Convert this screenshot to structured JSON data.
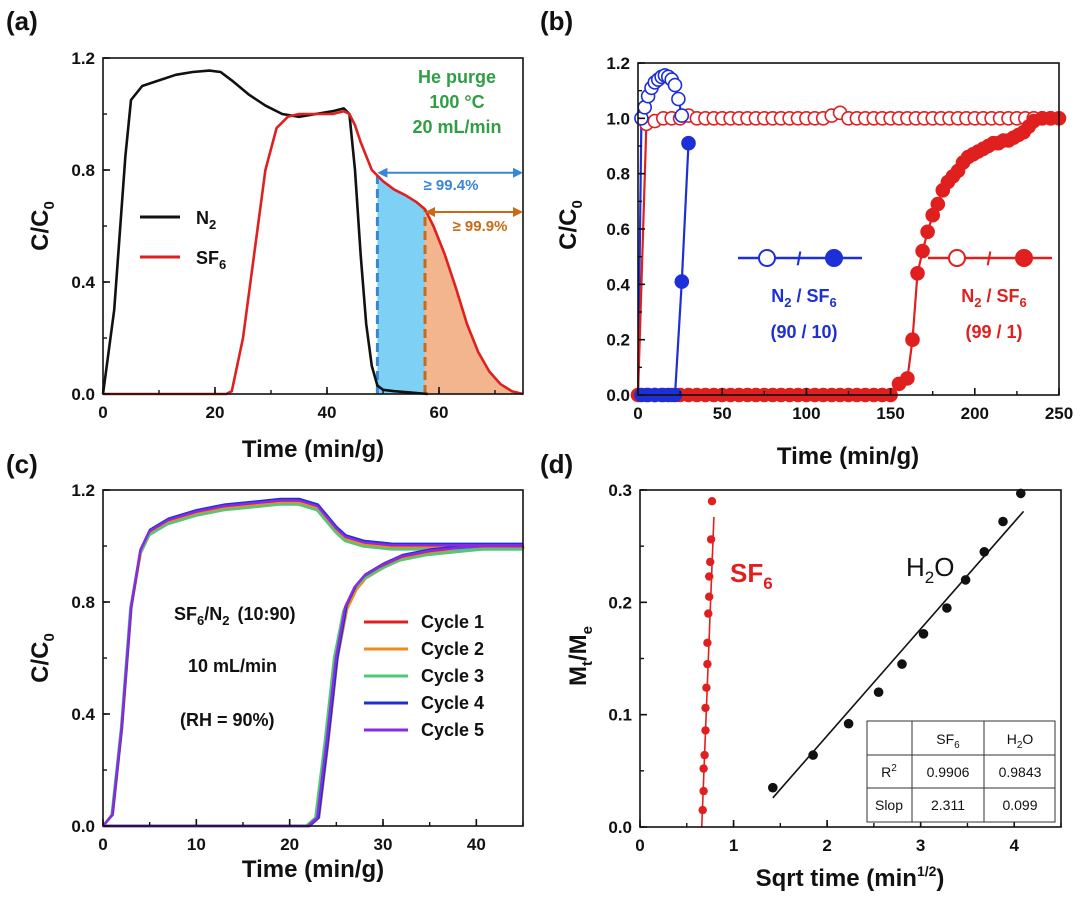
{
  "figure": {
    "colors": {
      "black": "#111111",
      "red": "#e01f1f",
      "blue": "#1d2fd6",
      "green": "#2f9e44",
      "cyanFill": "#7fd0f5",
      "orangeFill": "#f3b58e",
      "orangeArrow": "#c96a14",
      "arrowBlue": "#3a86d6"
    }
  },
  "chart_data": [
    {
      "panel": "(a)",
      "type": "line",
      "xlabel": "Time (min/g)",
      "ylabel": "C/C0",
      "xlim": [
        0,
        75
      ],
      "ylim": [
        0,
        1.2
      ],
      "xticks": [
        "0",
        "20",
        "40",
        "60"
      ],
      "yticks": [
        "0.0",
        "0.4",
        "0.8",
        "1.2"
      ],
      "legend": [
        "N",
        "SF"
      ],
      "series": [
        {
          "name": "N2",
          "color": "#111111",
          "x": [
            0,
            2,
            4,
            5,
            7,
            10,
            13,
            16,
            19,
            21,
            23,
            26,
            29,
            32,
            35,
            38,
            41,
            43,
            44,
            45,
            46,
            47,
            48,
            49,
            50,
            52,
            55,
            58
          ],
          "y": [
            0,
            0.3,
            0.85,
            1.05,
            1.1,
            1.12,
            1.14,
            1.15,
            1.155,
            1.15,
            1.12,
            1.07,
            1.03,
            1.0,
            0.99,
            1.0,
            1.01,
            1.02,
            1.0,
            0.8,
            0.5,
            0.25,
            0.1,
            0.03,
            0.015,
            0.01,
            0.005,
            0
          ]
        },
        {
          "name": "SF6",
          "color": "#e01f1f",
          "x": [
            0,
            22,
            23,
            25,
            27,
            29,
            31,
            33,
            35,
            38,
            41,
            43,
            44,
            45,
            46,
            48,
            50,
            52,
            54,
            56,
            57.5,
            59,
            61,
            63,
            65,
            67,
            69,
            71,
            73,
            75
          ],
          "y": [
            0,
            0,
            0.01,
            0.2,
            0.5,
            0.8,
            0.95,
            0.99,
            1.0,
            1.0,
            1.0,
            1.01,
            1.0,
            0.96,
            0.9,
            0.8,
            0.76,
            0.73,
            0.71,
            0.685,
            0.66,
            0.6,
            0.5,
            0.38,
            0.25,
            0.15,
            0.08,
            0.035,
            0.01,
            0
          ]
        }
      ],
      "annotations": {
        "purge": [
          "He purge",
          "100 °C",
          "20 mL/min"
        ],
        "arrow1": "≥ 99.4%",
        "arrow2": "≥ 99.9%"
      }
    },
    {
      "panel": "(b)",
      "type": "scatter",
      "xlabel": "Time (min/g)",
      "ylabel": "C/C0",
      "xlim": [
        0,
        250
      ],
      "ylim": [
        0,
        1.2
      ],
      "xticks": [
        "0",
        "50",
        "100",
        "150",
        "200",
        "250"
      ],
      "yticks": [
        "0.0",
        "0.2",
        "0.4",
        "0.6",
        "0.8",
        "1.0",
        "1.2"
      ],
      "series": [
        {
          "name": "N2 (90/10)",
          "style": "open",
          "color": "#1d2fd6",
          "x": [
            2,
            4,
            6,
            8,
            10,
            12,
            14,
            16,
            18,
            20,
            22,
            24,
            26
          ],
          "y": [
            1.0,
            1.04,
            1.08,
            1.11,
            1.13,
            1.14,
            1.15,
            1.155,
            1.15,
            1.14,
            1.12,
            1.07,
            1.01
          ]
        },
        {
          "name": "SF6 (90/10)",
          "style": "filled",
          "color": "#1d2fd6",
          "x": [
            2,
            6,
            10,
            14,
            18,
            22,
            26,
            30
          ],
          "y": [
            0,
            0,
            0,
            0,
            0,
            0,
            0.41,
            0.91
          ]
        },
        {
          "name": "N2 (99/1)",
          "style": "open",
          "color": "#e01f1f",
          "x": [
            5,
            10,
            15,
            20,
            25,
            30,
            35,
            40,
            45,
            50,
            55,
            60,
            65,
            70,
            75,
            80,
            85,
            90,
            95,
            100,
            105,
            110,
            115,
            120,
            125,
            130,
            135,
            140,
            145,
            150,
            155,
            160,
            165,
            170,
            175,
            180,
            185,
            190,
            195,
            200,
            205,
            210,
            215,
            220,
            225,
            230,
            235,
            240,
            245
          ],
          "y": [
            0.98,
            0.99,
            1.0,
            1.0,
            1.0,
            1.01,
            1.0,
            1.0,
            1.0,
            1.0,
            1.0,
            1.0,
            1.0,
            1.0,
            1.0,
            1.0,
            1.0,
            1.0,
            1.0,
            1.0,
            1.0,
            1.0,
            1.01,
            1.02,
            1.0,
            1.0,
            1.0,
            1.0,
            1.0,
            1.0,
            1.0,
            1.0,
            1.0,
            1.0,
            1.0,
            1.0,
            1.0,
            1.0,
            1.0,
            1.0,
            1.0,
            1.0,
            1.0,
            1.0,
            1.0,
            1.0,
            1.0,
            1.0,
            1.0
          ]
        },
        {
          "name": "SF6 (99/1)",
          "style": "filled",
          "color": "#e01f1f",
          "x": [
            0,
            5,
            10,
            15,
            20,
            25,
            30,
            35,
            40,
            45,
            50,
            55,
            60,
            65,
            70,
            75,
            80,
            85,
            90,
            95,
            100,
            105,
            110,
            115,
            120,
            125,
            130,
            135,
            140,
            145,
            150,
            155,
            160,
            163,
            166,
            169,
            172,
            175,
            178,
            181,
            184,
            187,
            190,
            193,
            196,
            199,
            202,
            205,
            208,
            211,
            214,
            217,
            220,
            223,
            226,
            229,
            232,
            235,
            240,
            245,
            250
          ],
          "y": [
            0,
            0,
            0,
            0,
            0,
            0,
            0,
            0,
            0,
            0,
            0,
            0,
            0,
            0,
            0,
            0,
            0,
            0,
            0,
            0,
            0,
            0,
            0,
            0,
            0,
            0,
            0,
            0,
            0,
            0,
            0,
            0.04,
            0.06,
            0.2,
            0.44,
            0.52,
            0.59,
            0.65,
            0.69,
            0.74,
            0.77,
            0.79,
            0.81,
            0.84,
            0.86,
            0.87,
            0.88,
            0.89,
            0.9,
            0.91,
            0.91,
            0.92,
            0.92,
            0.93,
            0.94,
            0.95,
            0.97,
            0.99,
            1.0,
            1.0,
            1.0
          ]
        }
      ],
      "legend_blue": [
        "N",
        "SF",
        "(90 / 10)"
      ],
      "legend_red": [
        "N",
        "SF",
        "(99 / 1)"
      ]
    },
    {
      "panel": "(c)",
      "type": "line",
      "xlabel": "Time (min/g)",
      "ylabel": "C/C0",
      "xlim": [
        0,
        45
      ],
      "ylim": [
        0,
        1.2
      ],
      "xticks": [
        "0",
        "10",
        "20",
        "30",
        "40"
      ],
      "yticks": [
        "0.0",
        "0.4",
        "0.8",
        "1.2"
      ],
      "legend": [
        "Cycle 1",
        "Cycle 2",
        "Cycle 3",
        "Cycle 4",
        "Cycle 5"
      ],
      "colors": [
        "#e01f1f",
        "#f08a1c",
        "#4fc87a",
        "#1d2fd6",
        "#8a2be2"
      ],
      "n2_x": [
        0,
        1,
        2,
        3,
        4,
        5,
        7,
        10,
        13,
        16,
        19,
        21,
        23,
        24,
        25,
        26,
        28,
        31,
        35,
        40,
        45
      ],
      "n2_y": [
        0,
        0.04,
        0.35,
        0.78,
        0.98,
        1.05,
        1.09,
        1.12,
        1.14,
        1.15,
        1.16,
        1.16,
        1.14,
        1.1,
        1.06,
        1.03,
        1.01,
        1.0,
        1.0,
        1.0,
        1.0
      ],
      "sf6_x": [
        0,
        22,
        23,
        24,
        25,
        26,
        27,
        28,
        30,
        32,
        35,
        38,
        41,
        45
      ],
      "sf6_y": [
        0,
        0,
        0.03,
        0.3,
        0.6,
        0.78,
        0.85,
        0.89,
        0.93,
        0.96,
        0.98,
        0.99,
        1.0,
        1.0
      ],
      "annotations": {
        "feed": [
          "SF",
          "/N",
          "(10:90)"
        ],
        "flow": "10 mL/min",
        "rh": "(RH = 90%)"
      }
    },
    {
      "panel": "(d)",
      "type": "scatter",
      "xlabel": "Sqrt time (min",
      "xlabel_sup": "1/2",
      "ylabel": "Mt/Me",
      "xlim": [
        0,
        4.5
      ],
      "ylim": [
        0,
        0.3
      ],
      "xticks": [
        "0",
        "1",
        "2",
        "3",
        "4"
      ],
      "yticks": [
        "0.0",
        "0.1",
        "0.2",
        "0.3"
      ],
      "series": [
        {
          "name": "SF6",
          "color": "#e01f1f",
          "x": [
            0.67,
            0.68,
            0.68,
            0.69,
            0.7,
            0.7,
            0.71,
            0.72,
            0.72,
            0.73,
            0.74,
            0.74,
            0.75,
            0.76,
            0.77
          ],
          "y": [
            0.015,
            0.032,
            0.052,
            0.064,
            0.086,
            0.106,
            0.124,
            0.145,
            0.164,
            0.19,
            0.205,
            0.223,
            0.236,
            0.256,
            0.29
          ],
          "fit": [
            [
              0.66,
              0.0
            ],
            [
              0.79,
              0.276
            ]
          ]
        },
        {
          "name": "H2O",
          "color": "#111111",
          "x": [
            1.42,
            1.85,
            2.23,
            2.55,
            2.8,
            3.03,
            3.28,
            3.48,
            3.68,
            3.88,
            4.07
          ],
          "y": [
            0.035,
            0.064,
            0.092,
            0.12,
            0.145,
            0.172,
            0.195,
            0.22,
            0.245,
            0.272,
            0.297
          ],
          "fit": [
            [
              1.42,
              0.026
            ],
            [
              4.1,
              0.281
            ]
          ]
        }
      ],
      "labels": {
        "sf6": "SF",
        "h2o_h": "H",
        "h2o_o": "O"
      },
      "table": {
        "headers": [
          "",
          "SF",
          "H"
        ],
        "rows": [
          [
            "R",
            "0.9906",
            "0.9843"
          ],
          [
            "Slop",
            "2.311",
            "0.099"
          ]
        ]
      }
    }
  ]
}
